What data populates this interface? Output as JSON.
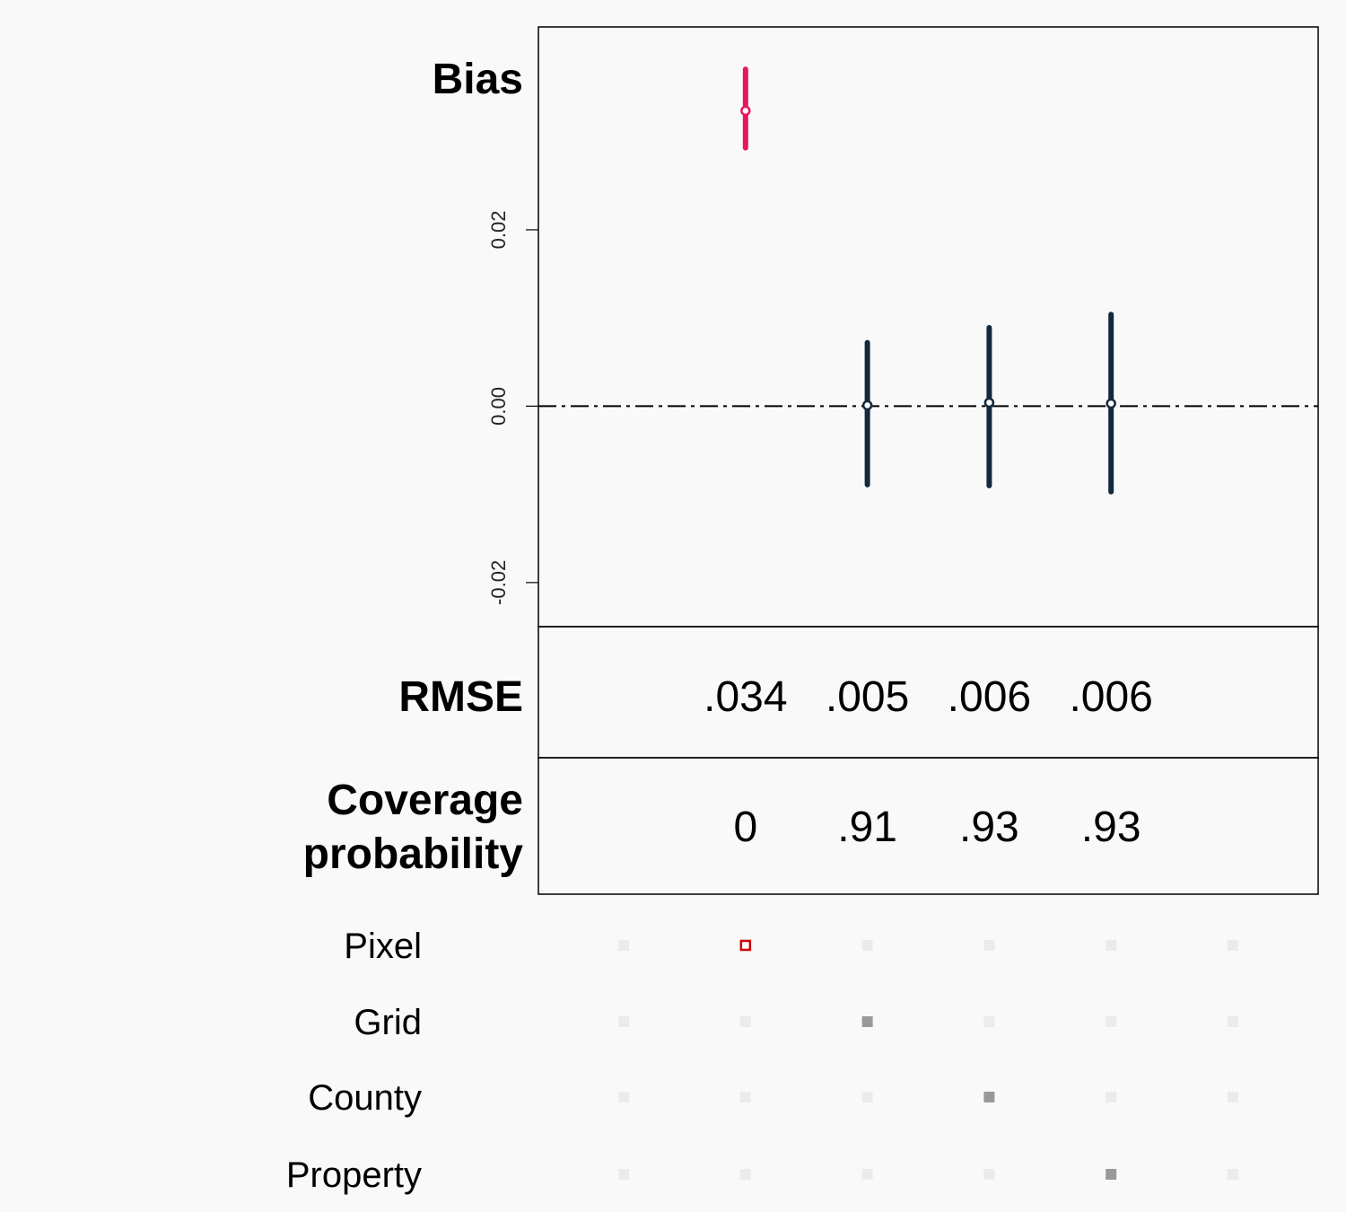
{
  "chart_data": {
    "type": "scatter",
    "title": "",
    "columns": 4,
    "bias": {
      "label": "Bias",
      "ylim": [
        -0.025,
        0.043
      ],
      "yticks": [
        -0.02,
        0.0,
        0.02
      ],
      "ytick_labels": [
        "-0.02",
        "0.00",
        "0.02"
      ],
      "reference_line": 0.0,
      "points": [
        {
          "estimate": 0.0335,
          "lower": 0.0293,
          "upper": 0.0382,
          "color": "#e8175d"
        },
        {
          "estimate": 0.0001,
          "lower": -0.0089,
          "upper": 0.0072,
          "color": "#13293d"
        },
        {
          "estimate": 0.0004,
          "lower": -0.009,
          "upper": 0.0089,
          "color": "#13293d"
        },
        {
          "estimate": 0.0003,
          "lower": -0.0097,
          "upper": 0.0104,
          "color": "#13293d"
        }
      ]
    },
    "rmse": {
      "label": "RMSE",
      "values": [
        ".034",
        ".005",
        ".006",
        ".006"
      ]
    },
    "coverage": {
      "label_line1": "Coverage",
      "label_line2": "probability",
      "values": [
        "0",
        ".91",
        ".93",
        ".93"
      ]
    },
    "methods": {
      "labels": [
        "Pixel",
        "Grid",
        "County",
        "Property"
      ],
      "active_column": [
        1,
        2,
        3,
        4
      ],
      "highlight_first_color": "#cc0000",
      "active_color": "#999999",
      "inactive_color": "#ebebeb"
    }
  }
}
